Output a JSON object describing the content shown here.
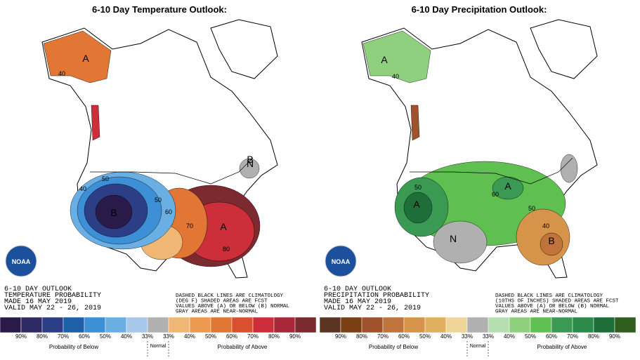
{
  "panels": [
    {
      "title": "6-10 Day Temperature Outlook:",
      "logo_text": "NOAA",
      "outlook_lines": [
        "6-10 DAY OUTLOOK",
        "TEMPERATURE PROBABILITY",
        "MADE  16 MAY 2019",
        "VALID  MAY 22 - 26, 2019"
      ],
      "note_lines": [
        "DASHED BLACK LINES ARE CLIMATOLOGY",
        "(DEG F) SHADED AREAS ARE FCST",
        "VALUES ABOVE (A) OR BELOW (B) NORMAL",
        "GRAY AREAS ARE NEAR-NORMAL"
      ],
      "map_labels": [
        "A",
        "B",
        "N",
        "B",
        "A",
        "40",
        "50",
        "60",
        "70",
        "80",
        "50",
        "40"
      ],
      "legend": {
        "below_label": "Probability of Below",
        "normal_label": "Normal",
        "above_label": "Probability of Above",
        "labels": [
          "90%",
          "80%",
          "70%",
          "60%",
          "50%",
          "40%",
          "33%",
          "33%",
          "40%",
          "50%",
          "60%",
          "70%",
          "80%",
          "90%"
        ],
        "colors": [
          "#2a1a4a",
          "#2e2a66",
          "#2c3f86",
          "#1f5fa8",
          "#3d8fd6",
          "#6aafe3",
          "#a8c8ea",
          "#b0b0b0",
          "#f0b774",
          "#eb9a4f",
          "#e27634",
          "#d9502e",
          "#cc2e3a",
          "#a8283a",
          "#7b2a2f"
        ]
      }
    },
    {
      "title": "6-10 Day Precipitation Outlook:",
      "logo_text": "NOAA",
      "outlook_lines": [
        "6-10 DAY OUTLOOK",
        "PRECIPITATION PROBABILITY",
        "MADE  16 MAY 2019",
        "VALID  MAY 22 - 26, 2019"
      ],
      "note_lines": [
        "DASHED BLACK LINES ARE CLIMATOLOGY",
        "(10THS OF INCHES) SHADED AREAS ARE FCST",
        "VALUES ABOVE (A) OR BELOW (B) NORMAL",
        "GRAY AREAS ARE NEAR-NORMAL"
      ],
      "map_labels": [
        "A",
        "A",
        "A",
        "N",
        "B",
        "40",
        "50",
        "60",
        "40",
        "50"
      ],
      "legend": {
        "below_label": "Probability of Below",
        "normal_label": "Normal",
        "above_label": "Probability of Above",
        "labels": [
          "90%",
          "80%",
          "70%",
          "60%",
          "50%",
          "40%",
          "33%",
          "33%",
          "40%",
          "50%",
          "60%",
          "70%",
          "80%",
          "90%"
        ],
        "colors": [
          "#5a3522",
          "#7b3d12",
          "#a0522d",
          "#c0733a",
          "#d5944a",
          "#e0b060",
          "#f0d59a",
          "#b0b0b0",
          "#b5dfb0",
          "#8fd07f",
          "#5fbf50",
          "#3a9a54",
          "#2b8a4a",
          "#1e6e3a",
          "#2f5e1e"
        ]
      }
    }
  ]
}
